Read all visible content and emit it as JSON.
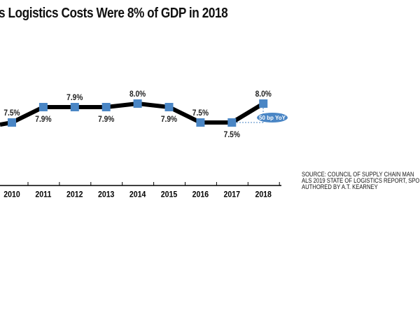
{
  "chart_data": {
    "type": "line",
    "title": "s Logistics Costs Were 8% of GDP in 2018",
    "categories": [
      "2010",
      "2011",
      "2012",
      "2013",
      "2014",
      "2015",
      "2016",
      "2017",
      "2018"
    ],
    "values": [
      7.5,
      7.9,
      7.9,
      7.9,
      8.0,
      7.9,
      7.5,
      7.5,
      8.0
    ],
    "labels": [
      "7.5%",
      "7.9%",
      "7.9%",
      "7.9%",
      "8.0%",
      "7.9%",
      "7.5%",
      "7.5%",
      "8.0%"
    ],
    "label_positions": [
      "above",
      "below",
      "above",
      "below",
      "above",
      "below",
      "above",
      "below",
      "above"
    ],
    "annotation": "50 bp YoY",
    "source": [
      "SOURCE: COUNCIL OF SUPPLY CHAIN MAN",
      "ALS 2019 STATE OF LOGISTICS REPORT, SPO",
      "AUTHORED BY A.T. KEARNEY"
    ],
    "ylim": [
      7.4,
      8.1
    ],
    "colors": {
      "marker": "#4a86c5",
      "line": "#000000",
      "annotation": "#4a86c5"
    }
  }
}
